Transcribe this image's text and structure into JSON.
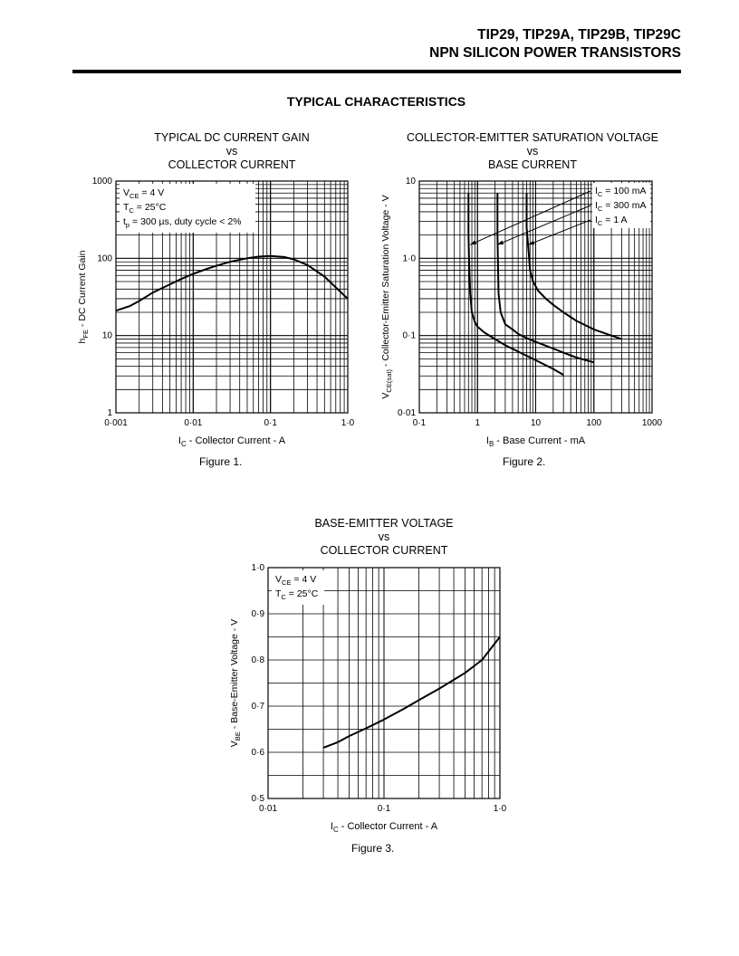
{
  "header": {
    "line1": "TIP29, TIP29A, TIP29B, TIP29C",
    "line2": "NPN SILICON POWER TRANSISTORS"
  },
  "section_title": "TYPICAL CHARACTERISTICS",
  "figures": [
    "Figure 1.",
    "Figure 2.",
    "Figure 3."
  ],
  "chart_data": [
    {
      "type": "line",
      "title_lines": [
        "TYPICAL DC CURRENT GAIN",
        "vs",
        "COLLECTOR CURRENT"
      ],
      "xscale": "log",
      "yscale": "log",
      "xlim": [
        0.001,
        1.0
      ],
      "ylim": [
        1,
        1000
      ],
      "xticks": [
        {
          "v": 0.001,
          "t": "0·001"
        },
        {
          "v": 0.01,
          "t": "0·01"
        },
        {
          "v": 0.1,
          "t": "0·1"
        },
        {
          "v": 1.0,
          "t": "1·0"
        }
      ],
      "yticks": [
        {
          "v": 1,
          "t": "1"
        },
        {
          "v": 10,
          "t": "10"
        },
        {
          "v": 100,
          "t": "100"
        },
        {
          "v": 1000,
          "t": "1000"
        }
      ],
      "xlabel": {
        "main": "I",
        "sub": "C",
        "rest": " - Collector Current - A"
      },
      "ylabel": {
        "main": "h",
        "sub": "FE",
        "rest": " - DC Current Gain"
      },
      "grid": true,
      "annotations": [
        {
          "main": "V",
          "sub": "CE",
          "rest": " = 4 V"
        },
        {
          "main": "T",
          "sub": "C",
          "rest": " = 25°C"
        },
        {
          "main": "t",
          "sub": "p",
          "rest": " = 300 µs, duty cycle < 2%"
        }
      ],
      "series": [
        {
          "x": [
            0.001,
            0.0015,
            0.002,
            0.003,
            0.005,
            0.007,
            0.01,
            0.015,
            0.02,
            0.03,
            0.05,
            0.07,
            0.1,
            0.15,
            0.2,
            0.3,
            0.5,
            0.7,
            1.0
          ],
          "y": [
            21,
            24,
            28,
            36,
            46,
            54,
            63,
            73,
            80,
            90,
            100,
            105,
            107,
            104,
            97,
            82,
            58,
            42,
            30
          ]
        }
      ]
    },
    {
      "type": "line",
      "title_lines": [
        "COLLECTOR-EMITTER SATURATION VOLTAGE",
        "vs",
        "BASE CURRENT"
      ],
      "xscale": "log",
      "yscale": "log",
      "xlim": [
        0.1,
        1000
      ],
      "ylim": [
        0.01,
        10
      ],
      "xticks": [
        {
          "v": 0.1,
          "t": "0·1"
        },
        {
          "v": 1,
          "t": "1"
        },
        {
          "v": 10,
          "t": "10"
        },
        {
          "v": 100,
          "t": "100"
        },
        {
          "v": 1000,
          "t": "1000"
        }
      ],
      "yticks": [
        {
          "v": 0.01,
          "t": "0·01"
        },
        {
          "v": 0.1,
          "t": "0·1"
        },
        {
          "v": 1,
          "t": "1·0"
        },
        {
          "v": 10,
          "t": "10"
        }
      ],
      "xlabel": {
        "main": "I",
        "sub": "B",
        "rest": " - Base Current - mA"
      },
      "ylabel": {
        "main": "V",
        "sub": "CE(sat)",
        "rest": " - Collector-Emitter Saturation Voltage - V"
      },
      "grid": true,
      "legend_labels": [
        {
          "main": "I",
          "sub": "C",
          "rest": " = 100 mA"
        },
        {
          "main": "I",
          "sub": "C",
          "rest": " = 300 mA"
        },
        {
          "main": "I",
          "sub": "C",
          "rest": " = 1 A"
        }
      ],
      "series": [
        {
          "name": "IC = 100 mA",
          "x": [
            0.7,
            0.7,
            0.72,
            0.75,
            0.8,
            0.9,
            1.0,
            1.3,
            2,
            3,
            5,
            10,
            20,
            30
          ],
          "y": [
            7,
            2.0,
            0.8,
            0.35,
            0.2,
            0.15,
            0.13,
            0.11,
            0.09,
            0.075,
            0.062,
            0.048,
            0.037,
            0.031
          ]
        },
        {
          "name": "IC = 300 mA",
          "x": [
            2.2,
            2.2,
            2.25,
            2.3,
            2.5,
            3,
            4,
            5,
            7,
            10,
            20,
            30,
            50,
            100
          ],
          "y": [
            7,
            2.0,
            0.8,
            0.35,
            0.2,
            0.14,
            0.12,
            0.105,
            0.093,
            0.083,
            0.068,
            0.06,
            0.052,
            0.045
          ]
        },
        {
          "name": "IC = 1 A",
          "x": [
            7,
            7,
            7.5,
            8,
            9,
            11,
            15,
            20,
            30,
            50,
            100,
            200,
            300
          ],
          "y": [
            7,
            2.5,
            1.3,
            0.7,
            0.5,
            0.38,
            0.3,
            0.25,
            0.2,
            0.155,
            0.12,
            0.1,
            0.09
          ]
        }
      ]
    },
    {
      "type": "line",
      "title_lines": [
        "BASE-EMITTER VOLTAGE",
        "vs",
        "COLLECTOR CURRENT"
      ],
      "xscale": "log",
      "yscale": "linear",
      "xlim": [
        0.01,
        1.0
      ],
      "ylim": [
        0.5,
        1.0
      ],
      "xticks": [
        {
          "v": 0.01,
          "t": "0·01"
        },
        {
          "v": 0.1,
          "t": "0·1"
        },
        {
          "v": 1.0,
          "t": "1·0"
        }
      ],
      "yticks": [
        {
          "v": 0.5,
          "t": "0·5"
        },
        {
          "v": 0.6,
          "t": "0·6"
        },
        {
          "v": 0.7,
          "t": "0·7"
        },
        {
          "v": 0.8,
          "t": "0·8"
        },
        {
          "v": 0.9,
          "t": "0·9"
        },
        {
          "v": 1.0,
          "t": "1·0"
        }
      ],
      "xlabel": {
        "main": "I",
        "sub": "C",
        "rest": " - Collector Current - A"
      },
      "ylabel": {
        "main": "V",
        "sub": "BE",
        "rest": " - Base-Emitter Voltage - V"
      },
      "grid": true,
      "annotations": [
        {
          "main": "V",
          "sub": "CE",
          "rest": " = 4 V"
        },
        {
          "main": "T",
          "sub": "C",
          "rest": " = 25°C"
        }
      ],
      "series": [
        {
          "x": [
            0.03,
            0.04,
            0.05,
            0.07,
            0.1,
            0.15,
            0.2,
            0.3,
            0.5,
            0.7,
            1.0
          ],
          "y": [
            0.61,
            0.622,
            0.635,
            0.652,
            0.671,
            0.695,
            0.713,
            0.738,
            0.772,
            0.8,
            0.85
          ]
        }
      ]
    }
  ]
}
